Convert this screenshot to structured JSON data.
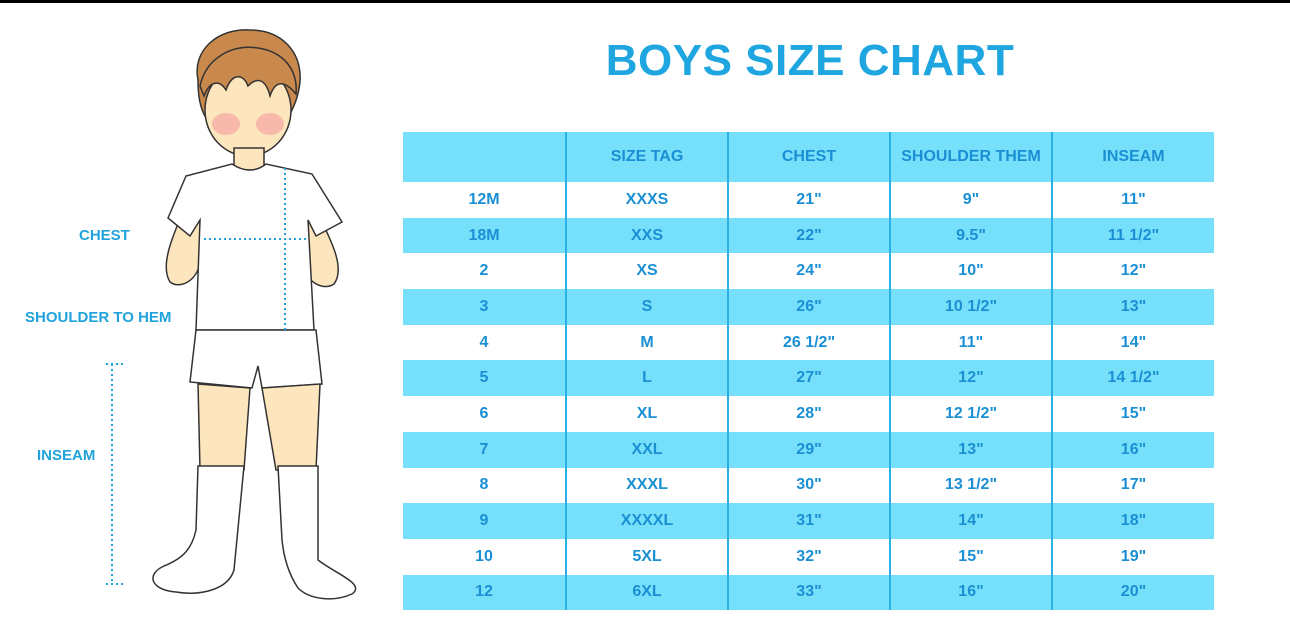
{
  "title": "BOYS SIZE CHART",
  "measure_labels": {
    "chest": "CHEST",
    "shoulder_to_hem": "SHOULDER TO HEM",
    "inseam": "INSEAM"
  },
  "table": {
    "headers": [
      "",
      "SIZE TAG",
      "CHEST",
      "SHOULDER THEM",
      "INSEAM"
    ],
    "rows": [
      [
        "12M",
        "XXXS",
        "21\"",
        "9\"",
        "11\""
      ],
      [
        "18M",
        "XXS",
        "22\"",
        "9.5\"",
        "11 1/2\""
      ],
      [
        "2",
        "XS",
        "24\"",
        "10\"",
        "12\""
      ],
      [
        "3",
        "S",
        "26\"",
        "10 1/2\"",
        "13\""
      ],
      [
        "4",
        "M",
        "26 1/2\"",
        "11\"",
        "14\""
      ],
      [
        "5",
        "L",
        "27\"",
        "12\"",
        "14 1/2\""
      ],
      [
        "6",
        "XL",
        "28\"",
        "12 1/2\"",
        "15\""
      ],
      [
        "7",
        "XXL",
        "29\"",
        "13\"",
        "16\""
      ],
      [
        "8",
        "XXXL",
        "30\"",
        "13 1/2\"",
        "17\""
      ],
      [
        "9",
        "XXXXL",
        "31\"",
        "14\"",
        "18\""
      ],
      [
        "10",
        "5XL",
        "32\"",
        "15\"",
        "19\""
      ],
      [
        "12",
        "6XL",
        "33\"",
        "16\"",
        "20\""
      ]
    ]
  },
  "colors": {
    "accent": "#1fa6e0",
    "stripe": "#76e0fb",
    "text": "#1a8fd4"
  }
}
